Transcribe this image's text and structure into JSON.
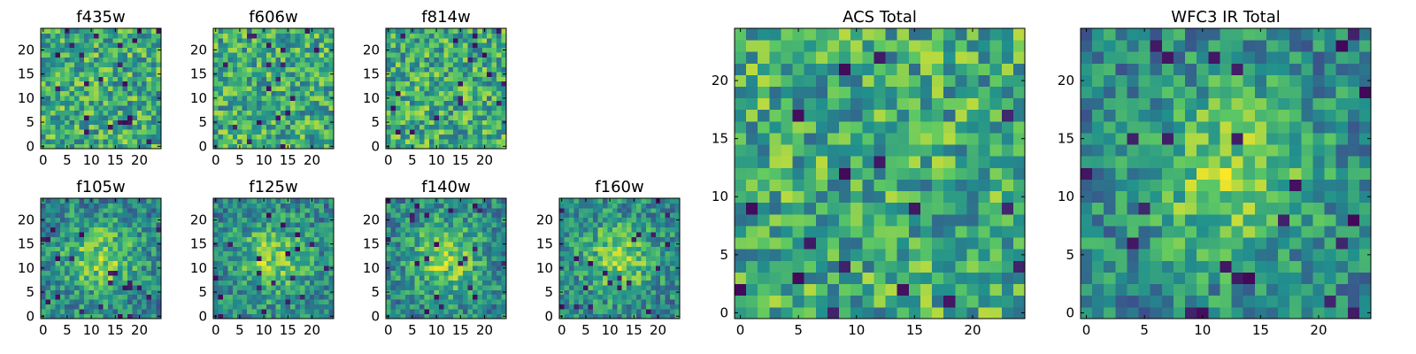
{
  "chart_data": [
    {
      "type": "heatmap",
      "title": "f435w",
      "xlim": [
        0,
        25
      ],
      "ylim": [
        0,
        25
      ],
      "xticks": [
        0,
        5,
        10,
        15,
        20
      ],
      "yticks": [
        0,
        5,
        10,
        15,
        20
      ],
      "grid": false,
      "pattern": "noise"
    },
    {
      "type": "heatmap",
      "title": "f606w",
      "xlim": [
        0,
        25
      ],
      "ylim": [
        0,
        25
      ],
      "xticks": [
        0,
        5,
        10,
        15,
        20
      ],
      "yticks": [
        0,
        5,
        10,
        15,
        20
      ],
      "grid": false,
      "pattern": "noise"
    },
    {
      "type": "heatmap",
      "title": "f814w",
      "xlim": [
        0,
        25
      ],
      "ylim": [
        0,
        25
      ],
      "xticks": [
        0,
        5,
        10,
        15,
        20
      ],
      "yticks": [
        0,
        5,
        10,
        15,
        20
      ],
      "grid": false,
      "pattern": "noise"
    },
    {
      "type": "heatmap",
      "title": "f105w",
      "xlim": [
        0,
        25
      ],
      "ylim": [
        0,
        25
      ],
      "xticks": [
        0,
        5,
        10,
        15,
        20
      ],
      "yticks": [
        0,
        5,
        10,
        15,
        20
      ],
      "grid": false,
      "pattern": "central-source"
    },
    {
      "type": "heatmap",
      "title": "f125w",
      "xlim": [
        0,
        25
      ],
      "ylim": [
        0,
        25
      ],
      "xticks": [
        0,
        5,
        10,
        15,
        20
      ],
      "yticks": [
        0,
        5,
        10,
        15,
        20
      ],
      "grid": false,
      "pattern": "central-source"
    },
    {
      "type": "heatmap",
      "title": "f140w",
      "xlim": [
        0,
        25
      ],
      "ylim": [
        0,
        25
      ],
      "xticks": [
        0,
        5,
        10,
        15,
        20
      ],
      "yticks": [
        0,
        5,
        10,
        15,
        20
      ],
      "grid": false,
      "pattern": "central-source"
    },
    {
      "type": "heatmap",
      "title": "f160w",
      "xlim": [
        0,
        25
      ],
      "ylim": [
        0,
        25
      ],
      "xticks": [
        0,
        5,
        10,
        15,
        20
      ],
      "yticks": [
        0,
        5,
        10,
        15,
        20
      ],
      "grid": false,
      "pattern": "central-source"
    },
    {
      "type": "heatmap",
      "title": "ACS Total",
      "xlim": [
        0,
        25
      ],
      "ylim": [
        0,
        25
      ],
      "xticks": [
        0,
        5,
        10,
        15,
        20
      ],
      "yticks": [
        0,
        5,
        10,
        15,
        20
      ],
      "grid": false,
      "pattern": "noise"
    },
    {
      "type": "heatmap",
      "title": "WFC3 IR Total",
      "xlim": [
        0,
        25
      ],
      "ylim": [
        0,
        25
      ],
      "xticks": [
        0,
        5,
        10,
        15,
        20
      ],
      "yticks": [
        0,
        5,
        10,
        15,
        20
      ],
      "grid": false,
      "pattern": "central-source"
    }
  ],
  "colormap": {
    "name": "viridis",
    "stops": [
      "#440154",
      "#3b528b",
      "#21908d",
      "#5dc863",
      "#fde725"
    ]
  }
}
